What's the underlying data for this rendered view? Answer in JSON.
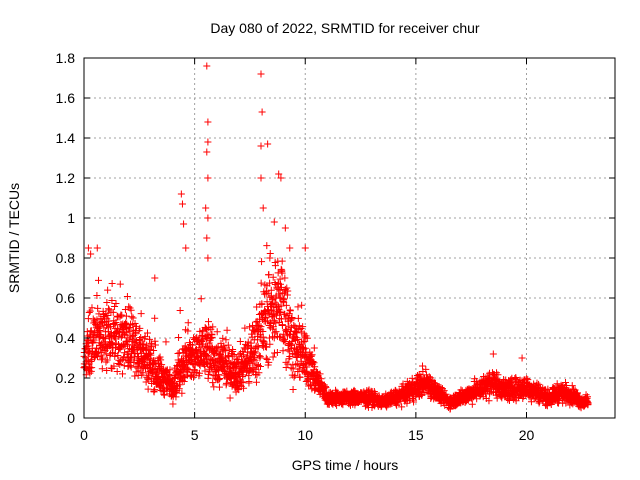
{
  "chart_data": {
    "type": "scatter",
    "title": "Day 080 of 2022, SRMTID for receiver chur",
    "xlabel": "GPS time / hours",
    "ylabel": "SRMTID / TECUs",
    "xlim": [
      0,
      24
    ],
    "ylim": [
      0,
      1.8
    ],
    "xticks": [
      0,
      5,
      10,
      15,
      20
    ],
    "xtick_labels": [
      "0",
      "5",
      "10",
      "15",
      "20"
    ],
    "yticks": [
      0,
      0.2,
      0.4,
      0.6,
      0.8,
      1,
      1.2,
      1.4,
      1.6,
      1.8
    ],
    "ytick_labels": [
      "0",
      "0.2",
      "0.4",
      "0.6",
      "0.8",
      "1",
      "1.2",
      "1.4",
      "1.6",
      "1.8"
    ],
    "grid": true,
    "marker": "+",
    "series": [
      {
        "name": "SRMTID",
        "color": "#ff0000",
        "profile": [
          [
            0.0,
            0.28
          ],
          [
            0.5,
            0.42
          ],
          [
            1.0,
            0.4
          ],
          [
            1.5,
            0.42
          ],
          [
            2.0,
            0.38
          ],
          [
            2.5,
            0.33
          ],
          [
            3.0,
            0.28
          ],
          [
            3.5,
            0.2
          ],
          [
            4.0,
            0.16
          ],
          [
            4.5,
            0.28
          ],
          [
            5.0,
            0.3
          ],
          [
            5.5,
            0.35
          ],
          [
            6.0,
            0.28
          ],
          [
            6.5,
            0.25
          ],
          [
            7.0,
            0.24
          ],
          [
            7.5,
            0.3
          ],
          [
            8.0,
            0.45
          ],
          [
            8.5,
            0.55
          ],
          [
            9.0,
            0.55
          ],
          [
            9.5,
            0.35
          ],
          [
            10.0,
            0.3
          ],
          [
            10.5,
            0.2
          ],
          [
            11.0,
            0.1
          ],
          [
            12.0,
            0.1
          ],
          [
            13.0,
            0.1
          ],
          [
            13.5,
            0.08
          ],
          [
            14.0,
            0.1
          ],
          [
            14.5,
            0.12
          ],
          [
            15.0,
            0.15
          ],
          [
            15.5,
            0.18
          ],
          [
            16.0,
            0.12
          ],
          [
            16.5,
            0.08
          ],
          [
            17.0,
            0.1
          ],
          [
            18.0,
            0.15
          ],
          [
            18.5,
            0.18
          ],
          [
            19.0,
            0.14
          ],
          [
            20.0,
            0.15
          ],
          [
            20.5,
            0.13
          ],
          [
            21.0,
            0.1
          ],
          [
            21.5,
            0.13
          ],
          [
            22.0,
            0.12
          ],
          [
            22.5,
            0.08
          ],
          [
            22.8,
            0.08
          ]
        ],
        "peaks": [
          [
            0.2,
            0.85
          ],
          [
            0.3,
            0.82
          ],
          [
            0.6,
            0.85
          ],
          [
            3.2,
            0.7
          ],
          [
            4.4,
            1.12
          ],
          [
            4.45,
            1.07
          ],
          [
            4.5,
            0.97
          ],
          [
            4.6,
            0.85
          ],
          [
            5.55,
            1.76
          ],
          [
            5.6,
            1.48
          ],
          [
            5.6,
            1.38
          ],
          [
            5.55,
            1.33
          ],
          [
            5.6,
            1.2
          ],
          [
            5.5,
            1.05
          ],
          [
            5.6,
            1.0
          ],
          [
            5.55,
            0.9
          ],
          [
            5.6,
            0.8
          ],
          [
            8.0,
            1.72
          ],
          [
            8.05,
            1.53
          ],
          [
            8.0,
            1.36
          ],
          [
            8.3,
            1.37
          ],
          [
            8.0,
            1.2
          ],
          [
            8.8,
            1.22
          ],
          [
            8.9,
            1.2
          ],
          [
            8.1,
            1.05
          ],
          [
            8.6,
            0.98
          ],
          [
            9.1,
            0.95
          ],
          [
            9.3,
            0.85
          ],
          [
            10.0,
            0.85
          ],
          [
            8.4,
            0.8
          ],
          [
            18.5,
            0.32
          ],
          [
            19.8,
            0.3
          ],
          [
            15.3,
            0.26
          ]
        ]
      }
    ]
  }
}
